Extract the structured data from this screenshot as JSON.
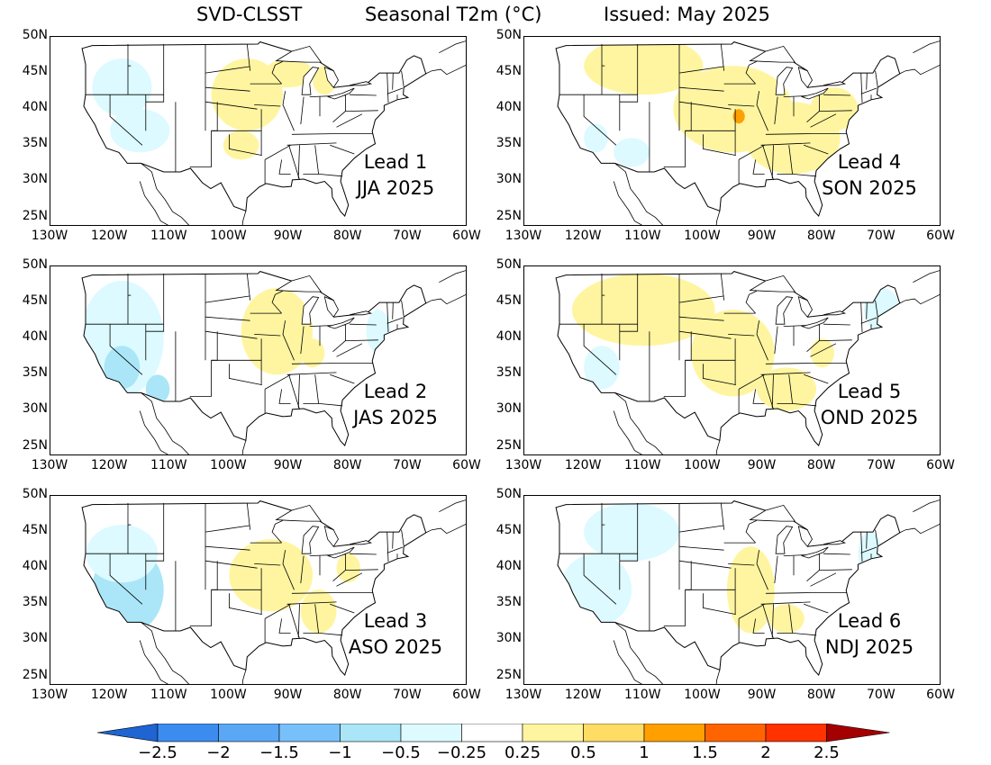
{
  "title": {
    "model": "SVD-CLSST",
    "variable": "Seasonal T2m (°C)",
    "issued": "Issued: May 2025"
  },
  "axes": {
    "y_ticks": [
      "50N",
      "45N",
      "40N",
      "35N",
      "30N",
      "25N"
    ],
    "x_ticks": [
      "130W",
      "120W",
      "110W",
      "100W",
      "90W",
      "80W",
      "70W",
      "60W"
    ]
  },
  "panels": [
    {
      "lead": "Lead 1",
      "season": "JJA 2025"
    },
    {
      "lead": "Lead 4",
      "season": "SON 2025"
    },
    {
      "lead": "Lead 2",
      "season": "JAS 2025"
    },
    {
      "lead": "Lead 5",
      "season": "OND 2025"
    },
    {
      "lead": "Lead 3",
      "season": "ASO 2025"
    },
    {
      "lead": "Lead 6",
      "season": "NDJ 2025"
    }
  ],
  "colorbar": {
    "labels": [
      "-2.5",
      "-2",
      "-1.5",
      "-1",
      "-0.5",
      "-0.25",
      "0.25",
      "0.5",
      "1",
      "1.5",
      "2",
      "2.5"
    ],
    "colors": [
      "#1e64d2",
      "#3c8cf0",
      "#5aa8f5",
      "#78c0fa",
      "#aae6f8",
      "#dcfaff",
      "#ffffff",
      "#fff5a0",
      "#ffdc64",
      "#ffa000",
      "#ff6400",
      "#ff3200",
      "#a50000"
    ]
  }
}
